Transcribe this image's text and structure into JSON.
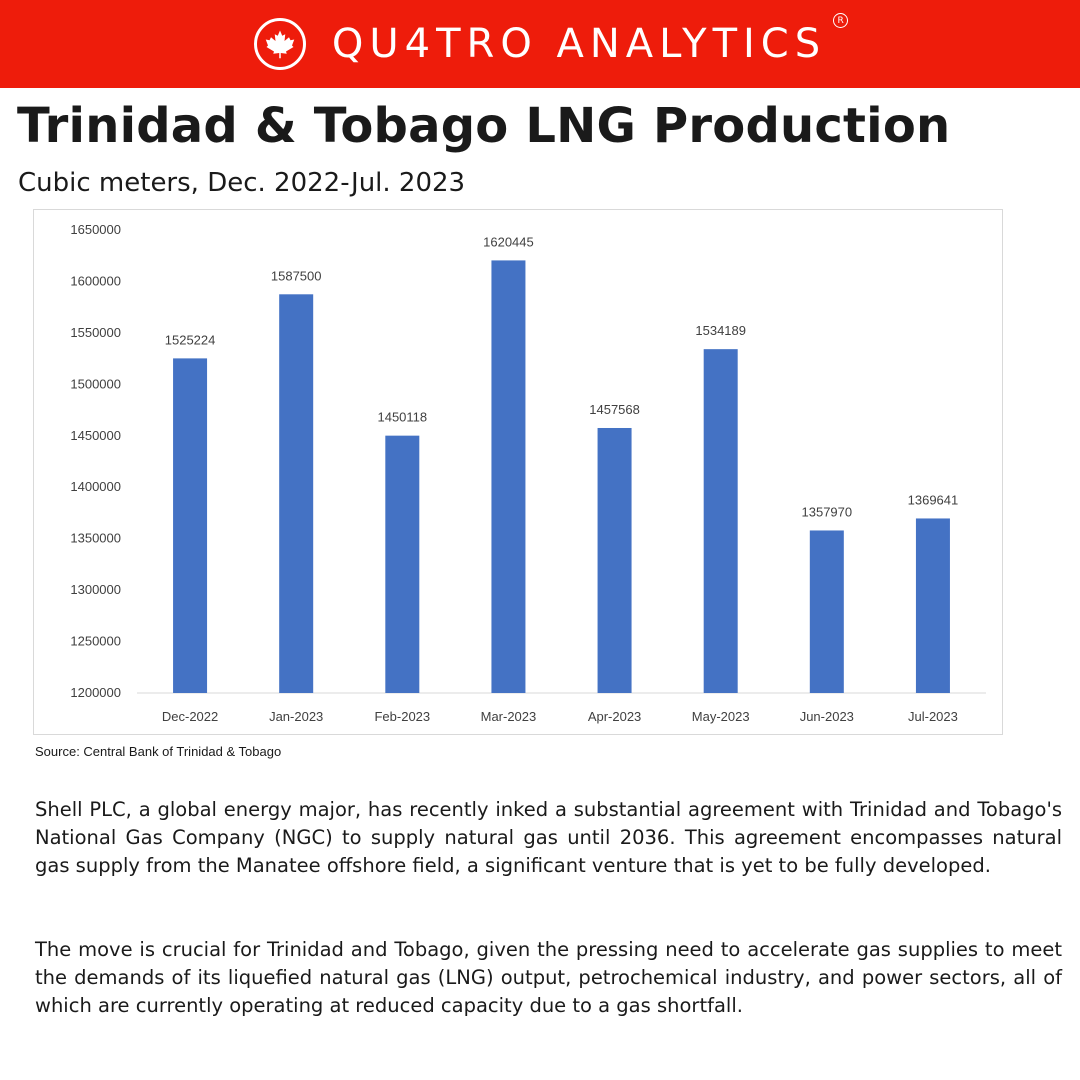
{
  "brand": {
    "name": "QU4TRO ANALYTICS",
    "registered_mark": "R",
    "icon": "maple-leaf-icon",
    "color": "#ee1c0b"
  },
  "header": {
    "title": "Trinidad & Tobago LNG Production",
    "subtitle": "Cubic meters, Dec. 2022-Jul. 2023"
  },
  "chart_data": {
    "type": "bar",
    "categories": [
      "Dec-2022",
      "Jan-2023",
      "Feb-2023",
      "Mar-2023",
      "Apr-2023",
      "May-2023",
      "Jun-2023",
      "Jul-2023"
    ],
    "values": [
      1525224,
      1587500,
      1450118,
      1620445,
      1457568,
      1534189,
      1357970,
      1369641
    ],
    "ylim": [
      1200000,
      1650000
    ],
    "yticks": [
      1200000,
      1250000,
      1300000,
      1350000,
      1400000,
      1450000,
      1500000,
      1550000,
      1600000,
      1650000
    ],
    "bar_color": "#4472c4",
    "grid": false,
    "legend": "none"
  },
  "source": "Source: Central Bank of Trinidad & Tobago",
  "body": {
    "paragraph1": "Shell PLC, a global energy major, has recently inked a substantial agreement with Trinidad and Tobago's National Gas Company (NGC) to supply natural gas until 2036. This agreement encompasses natural gas supply from the Manatee offshore field, a significant venture that is yet to be fully developed.",
    "paragraph2": "The move is crucial for Trinidad and Tobago, given the pressing need to accelerate gas supplies to meet the demands of its liquefied natural gas (LNG) output, petrochemical industry, and power sectors, all of which are currently operating at reduced capacity due to a gas shortfall."
  }
}
